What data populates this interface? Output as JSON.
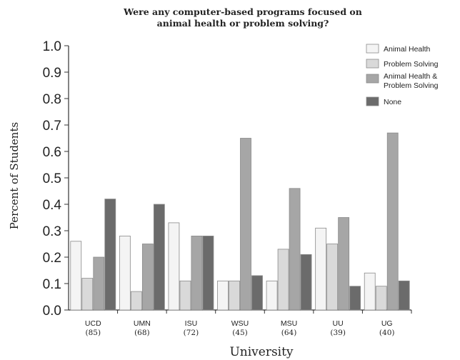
{
  "chart_data": {
    "type": "bar",
    "title_lines": [
      "Were any computer-based programs focused on",
      "animal health or problem solving?"
    ],
    "xlabel": "University",
    "ylabel": "Percent of Students",
    "ylim": [
      0,
      1.0
    ],
    "yticks": [
      "0.0",
      "0.1",
      "0.2",
      "0.3",
      "0.4",
      "0.5",
      "0.6",
      "0.7",
      "0.8",
      "0.9",
      "1.0"
    ],
    "categories": [
      "UCD",
      "UMN",
      "ISU",
      "WSU",
      "MSU",
      "UU",
      "UG"
    ],
    "category_counts": [
      "(85)",
      "(68)",
      "(72)",
      "(45)",
      "(64)",
      "(39)",
      "(40)"
    ],
    "legend_position": "top-right",
    "series": [
      {
        "name": "Animal Health",
        "legend_lines": [
          "Animal Health"
        ],
        "color": "#f4f4f4",
        "values": [
          0.26,
          0.28,
          0.33,
          0.11,
          0.11,
          0.31,
          0.14
        ]
      },
      {
        "name": "Problem Solving",
        "legend_lines": [
          "Problem Solving"
        ],
        "color": "#d9d9d9",
        "values": [
          0.12,
          0.07,
          0.11,
          0.11,
          0.23,
          0.25,
          0.09
        ]
      },
      {
        "name": "Animal Health & Problem Solving",
        "legend_lines": [
          "Animal Health &",
          "Problem Solving"
        ],
        "color": "#a6a6a6",
        "values": [
          0.2,
          0.25,
          0.28,
          0.65,
          0.46,
          0.35,
          0.67
        ]
      },
      {
        "name": "None",
        "legend_lines": [
          "None"
        ],
        "color": "#6b6b6b",
        "values": [
          0.42,
          0.4,
          0.28,
          0.13,
          0.21,
          0.09,
          0.11
        ]
      }
    ]
  }
}
